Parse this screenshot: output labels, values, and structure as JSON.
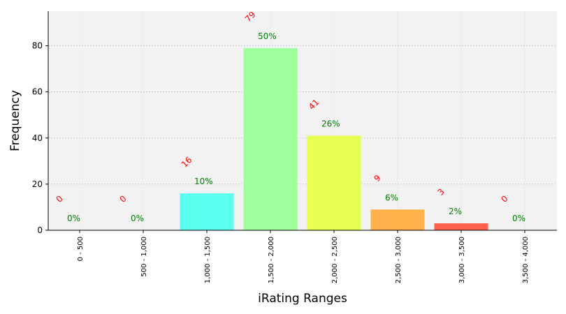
{
  "chart_data": {
    "type": "bar",
    "title": "",
    "xlabel": "iRating Ranges",
    "ylabel": "Frequency",
    "categories": [
      "0 - 500",
      "500 - 1,000",
      "1,000 - 1,500",
      "1,500 - 2,000",
      "2,000 - 2,500",
      "2,500 - 3,000",
      "3,000 - 3,500",
      "3,500 - 4,000"
    ],
    "values": [
      0,
      0,
      16,
      79,
      41,
      9,
      3,
      0
    ],
    "count_labels": [
      "0",
      "0",
      "16",
      "79",
      "41",
      "9",
      "3",
      "0"
    ],
    "percent_labels": [
      "0%",
      "0%",
      "10%",
      "50%",
      "26%",
      "6%",
      "2%",
      "0%"
    ],
    "bar_colors": [
      "#5aff5a",
      "#5affa0",
      "#5afff0",
      "#a0ff9d",
      "#e8ff50",
      "#ffb14a",
      "#ff5f4a",
      "#ff3a3a"
    ],
    "ylim": [
      0,
      95
    ],
    "yticks": [
      0,
      20,
      40,
      60,
      80
    ],
    "grid": true,
    "colors": {
      "plot_background": "#f2f2f2",
      "count_label": "#ff0000",
      "percent_label": "#008000",
      "grid": "#c8c8c8"
    }
  }
}
